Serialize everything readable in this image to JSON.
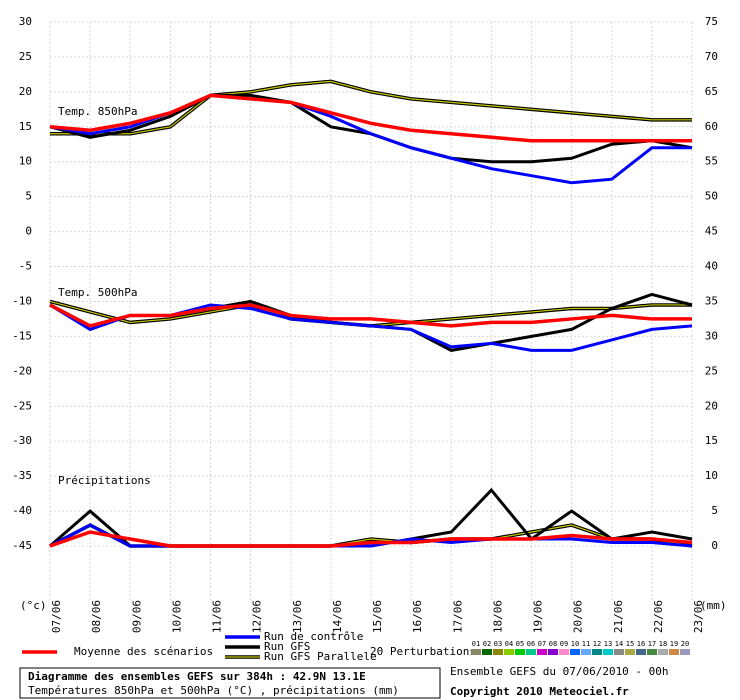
{
  "chart_data": {
    "type": "line",
    "title": "Diagramme des ensembles GEFS sur 384h : 42.9N 13.1E",
    "subtitle": "Températures 850hPa et 500hPa (°C) , précipitations (mm)",
    "run_label": "Ensemble GEFS du 07/06/2010 - 00h",
    "copyright": "Copyright 2010 Meteociel.fr",
    "ylabel": "(°c)",
    "y2label": "(mm)",
    "categories": [
      "07/06",
      "08/06",
      "09/06",
      "10/06",
      "11/06",
      "12/06",
      "13/06",
      "14/06",
      "15/06",
      "16/06",
      "17/06",
      "18/06",
      "19/06",
      "20/06",
      "21/06",
      "22/06",
      "23/06"
    ],
    "ylim": [
      -45,
      30
    ],
    "yticks": [
      30,
      25,
      20,
      15,
      10,
      5,
      0,
      -5,
      -10,
      -15,
      -20,
      -25,
      -30,
      -35,
      -40,
      -45
    ],
    "y2lim": [
      0,
      75
    ],
    "y2ticks": [
      75,
      70,
      65,
      60,
      55,
      50,
      45,
      40,
      35,
      30,
      25,
      20,
      15,
      10,
      5,
      0
    ],
    "grid": true,
    "legend": [
      {
        "name": "Moyenne des scénarios",
        "color": "#ff0000"
      },
      {
        "name": "Run de contrôle",
        "color": "#0000ff"
      },
      {
        "name": "Run GFS",
        "color": "#000000"
      },
      {
        "name": "Run GFS Parallele",
        "color": "#c8c800"
      }
    ],
    "perturbations": {
      "label": "20 Perturbations",
      "members": [
        {
          "name": "01",
          "color": "#888866"
        },
        {
          "name": "02",
          "color": "#006600"
        },
        {
          "name": "03",
          "color": "#888800"
        },
        {
          "name": "04",
          "color": "#88cc00"
        },
        {
          "name": "05",
          "color": "#00cc00"
        },
        {
          "name": "06",
          "color": "#00cc88"
        },
        {
          "name": "07",
          "color": "#cc00cc"
        },
        {
          "name": "08",
          "color": "#8800cc"
        },
        {
          "name": "09",
          "color": "#ff88cc"
        },
        {
          "name": "10",
          "color": "#0066ff"
        },
        {
          "name": "11",
          "color": "#66aaff"
        },
        {
          "name": "12",
          "color": "#008888"
        },
        {
          "name": "13",
          "color": "#00cccc"
        },
        {
          "name": "14",
          "color": "#888888"
        },
        {
          "name": "15",
          "color": "#aaaa44"
        },
        {
          "name": "16",
          "color": "#446688"
        },
        {
          "name": "17",
          "color": "#448844"
        },
        {
          "name": "18",
          "color": "#aaaaaa"
        },
        {
          "name": "19",
          "color": "#cc8844"
        },
        {
          "name": "20",
          "color": "#9999bb"
        }
      ]
    },
    "panels": [
      {
        "label": "Temp. 850hPa",
        "series": [
          {
            "values": [
              15,
              14.5,
              15.5,
              17,
              19.5,
              19,
              18.5,
              17,
              15.5,
              14.5,
              14,
              13.5,
              13,
              13,
              13,
              13,
              13
            ]
          },
          {
            "values": [
              15,
              14,
              15,
              17,
              19.5,
              19,
              18.5,
              16.5,
              14,
              12,
              10.5,
              9,
              8,
              7,
              7.5,
              12,
              12
            ]
          },
          {
            "values": [
              15,
              13.5,
              14.5,
              16.5,
              19.5,
              19.5,
              18.5,
              15,
              14,
              12,
              10.5,
              10,
              10,
              10.5,
              12.5,
              13,
              12
            ]
          },
          {
            "values": [
              14,
              14,
              14,
              15,
              19.5,
              20,
              21,
              21.5,
              20,
              19,
              18.5,
              18,
              17.5,
              17,
              16.5,
              16,
              16
            ]
          }
        ]
      },
      {
        "label": "Temp. 500hPa",
        "series": [
          {
            "values": [
              -10.5,
              -13.5,
              -12,
              -12,
              -11,
              -10.5,
              -12,
              -12.5,
              -12.5,
              -13,
              -13.5,
              -13,
              -13,
              -12.5,
              -12,
              -12.5,
              -12.5
            ]
          },
          {
            "values": [
              -10.5,
              -14,
              -12,
              -12,
              -10.5,
              -11,
              -12.5,
              -13,
              -13.5,
              -14,
              -16.5,
              -16,
              -17,
              -17,
              -15.5,
              -14,
              -13.5
            ]
          },
          {
            "values": [
              -10.5,
              -13.5,
              -12,
              -12,
              -11,
              -10,
              -12,
              -13,
              -13.5,
              -14,
              -17,
              -16,
              -15,
              -14,
              -11,
              -9,
              -10.5
            ]
          },
          {
            "values": [
              -10,
              -11.5,
              -13,
              -12.5,
              -11.5,
              -10.5,
              -12.5,
              -13,
              -13.5,
              -13,
              -12.5,
              -12,
              -11.5,
              -11,
              -11,
              -10.5,
              -10.5
            ]
          }
        ]
      },
      {
        "label": "Précipitations",
        "axis": "y2",
        "series": [
          {
            "values": [
              0,
              2,
              1,
              0,
              0,
              0,
              0,
              0,
              0.5,
              0.5,
              1,
              1,
              1,
              1.5,
              1,
              1,
              0.5
            ]
          },
          {
            "values": [
              0,
              3,
              0,
              0,
              0,
              0,
              0,
              0,
              0,
              1,
              0.5,
              1,
              1,
              1,
              0.5,
              0.5,
              0
            ]
          },
          {
            "values": [
              0,
              5,
              0,
              0,
              0,
              0,
              0,
              0,
              0,
              1,
              2,
              8,
              1,
              5,
              1,
              2,
              1
            ]
          },
          {
            "values": [
              0,
              3,
              0,
              0,
              0,
              0,
              0,
              0,
              1,
              0.5,
              1,
              1,
              2,
              3,
              1,
              1,
              0
            ]
          }
        ]
      }
    ]
  }
}
